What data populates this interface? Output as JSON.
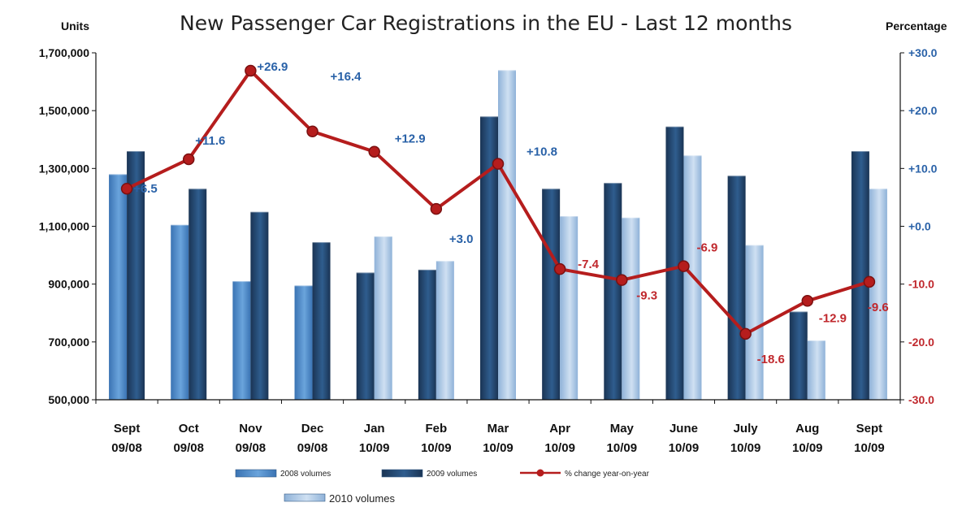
{
  "chart_data": {
    "type": "bar",
    "title": "New Passenger Car Registrations in the EU - Last 12 months",
    "ylabel_left": "Units",
    "ylabel_right": "Percentage",
    "categories": [
      [
        "Sept",
        "09/08"
      ],
      [
        "Oct",
        "09/08"
      ],
      [
        "Nov",
        "09/08"
      ],
      [
        "Dec",
        "09/08"
      ],
      [
        "Jan",
        "10/09"
      ],
      [
        "Feb",
        "10/09"
      ],
      [
        "Mar",
        "10/09"
      ],
      [
        "Apr",
        "10/09"
      ],
      [
        "May",
        "10/09"
      ],
      [
        "June",
        "10/09"
      ],
      [
        "July",
        "10/09"
      ],
      [
        "Aug",
        "10/09"
      ],
      [
        "Sept",
        "10/09"
      ]
    ],
    "ylim_left": [
      500000,
      1700000
    ],
    "yticks_left": [
      "500,000",
      "700,000",
      "900,000",
      "1,100,000",
      "1,300,000",
      "1,500,000",
      "1,700,000"
    ],
    "ylim_right": [
      -30,
      30
    ],
    "yticks_right": [
      "-30.0",
      "-20.0",
      "-10.0",
      "+0.0",
      "+10.0",
      "+20.0",
      "+30.0"
    ],
    "series": [
      {
        "name": "2008 volumes",
        "kind": "bar",
        "color": "#4a86c8",
        "values": [
          1280000,
          1105000,
          910000,
          895000,
          null,
          null,
          null,
          null,
          null,
          null,
          null,
          null,
          null
        ]
      },
      {
        "name": "2009 volumes",
        "kind": "bar",
        "color": "#1f3f66",
        "values": [
          1360000,
          1230000,
          1150000,
          1045000,
          940000,
          950000,
          1480000,
          1230000,
          1250000,
          1445000,
          1275000,
          805000,
          1360000
        ]
      },
      {
        "name": "2010 volumes",
        "kind": "bar",
        "color": "#a8c4e2",
        "values": [
          null,
          null,
          null,
          null,
          1065000,
          980000,
          1640000,
          1135000,
          1130000,
          1345000,
          1035000,
          705000,
          1230000
        ]
      },
      {
        "name": "% change year-on-year",
        "kind": "line",
        "color": "#b51d1d",
        "values": [
          6.5,
          11.6,
          26.9,
          16.4,
          12.9,
          3.0,
          10.8,
          -7.4,
          -9.3,
          -6.9,
          -18.6,
          -12.9,
          -9.6
        ],
        "labels": [
          "+6.5",
          "+11.6",
          "+26.9",
          "+16.4",
          "+12.9",
          "+3.0",
          "+10.8",
          "-7.4",
          "-9.3",
          "-6.9",
          "-18.6",
          "-12.9",
          "-9.6"
        ]
      }
    ],
    "colors": {
      "positive_label": "#2a62a8",
      "negative_label": "#c0282d",
      "grid": "#cccccc"
    },
    "grid": false,
    "legend_position": "bottom"
  }
}
